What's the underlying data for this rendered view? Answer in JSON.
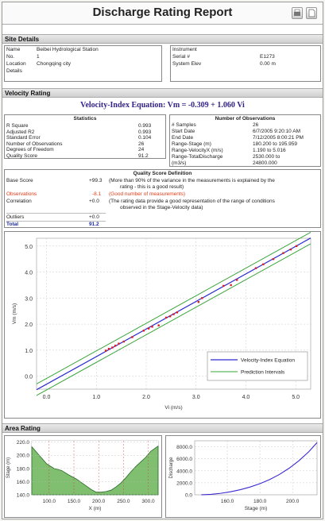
{
  "report": {
    "title": "Discharge Rating Report"
  },
  "site_details": {
    "heading": "Site Details",
    "name_label": "Name",
    "name_value": "Beibei Hydrological Station",
    "no_label": "No.",
    "no_value": "1",
    "location_label": "Location",
    "location_value": "Chongqing city",
    "details_label": "Details",
    "instrument_label": "Instrument",
    "serial_label": "Serial #",
    "serial_value": "E1273",
    "elev_label": "System Elev",
    "elev_value": "0.00 m"
  },
  "velocity_rating": {
    "heading": "Velocity Rating",
    "equation": "Velocity-Index Equation: Vm = -0.309 + 1.060 Vi",
    "statistics": {
      "title": "Statistics",
      "rows": [
        {
          "label": "R Square",
          "value": "0.993"
        },
        {
          "label": "Adjusted R2",
          "value": "0.993"
        },
        {
          "label": "Standard Error",
          "value": "0.104"
        },
        {
          "label": "Number of Observations",
          "value": "26"
        },
        {
          "label": "Degrees of Freedom",
          "value": "24"
        },
        {
          "label": "Quality Score",
          "value": "91.2"
        }
      ]
    },
    "observations": {
      "title": "Number of Observations",
      "rows": [
        {
          "label": "# Samples",
          "value": "26"
        },
        {
          "label": "Start Date",
          "value": "6/7/2005 9:20:10 AM"
        },
        {
          "label": "End Date",
          "value": "7/12/2005 8:00:21 PM"
        },
        {
          "label": "Range-Stage (m)",
          "value": "180.200 to 195.959"
        },
        {
          "label": "Range-VelocityX (m/s)",
          "value": "1.190 to 5.016"
        },
        {
          "label": "Range-TotalDischarge",
          "value": "2530.000 to"
        },
        {
          "label": "(m3/s)",
          "value": "24800.000"
        }
      ]
    },
    "quality": {
      "title": "Quality Score Definition",
      "base_label": "Base Score",
      "base_value": "+99.3",
      "base_desc_1": "(More than 90% of the variance in the measurements is explained by the",
      "base_desc_2": "rating - this is a good result)",
      "obs_label": "Observations",
      "obs_value": "-8.1",
      "obs_desc": "(Good number of measurements)",
      "corr_label": "Correlation",
      "corr_value": "+0.0",
      "corr_desc_1": "(The rating data provide a good representation of the range of conditions",
      "corr_desc_2": "observed in the Stage-Velocity data)",
      "outliers_label": "Outliers",
      "outliers_value": "+0.0",
      "total_label": "Total",
      "total_value": "91.2"
    }
  },
  "area_rating": {
    "heading": "Area Rating"
  },
  "colors": {
    "fit_line": "#2b2bd0",
    "interval_line": "#3aa53a",
    "points": "#e02020",
    "area_fill": "#7fbf6f",
    "discharge_curve": "#3a2ad0"
  },
  "chart_data": [
    {
      "type": "scatter",
      "title": "",
      "xlabel": "Vi (m/s)",
      "ylabel": "Vm (m/s)",
      "xlim": [
        -0.2,
        5.3
      ],
      "ylim": [
        -0.5,
        5.3
      ],
      "x_ticks": [
        "0.0",
        "1.0",
        "2.0",
        "3.0",
        "4.0",
        "5.0"
      ],
      "y_ticks": [
        "0.0",
        "1.0",
        "2.0",
        "3.0",
        "4.0",
        "5.0"
      ],
      "grid": true,
      "legend_position": "bottom-right",
      "series": [
        {
          "name": "Velocity-Index Equation",
          "kind": "line",
          "intercept": -0.309,
          "slope": 1.06
        },
        {
          "name": "Prediction Intervals",
          "kind": "line",
          "offset": 0.22
        },
        {
          "kind": "points",
          "x": [
            1.19,
            1.25,
            1.32,
            1.38,
            1.45,
            1.55,
            1.72,
            1.95,
            2.05,
            2.12,
            2.25,
            2.4,
            2.48,
            2.55,
            2.62,
            3.05,
            3.12,
            3.55,
            3.7,
            3.82,
            4.2,
            4.35,
            4.55,
            4.75,
            4.9,
            5.016
          ],
          "y": [
            0.98,
            1.05,
            1.1,
            1.17,
            1.25,
            1.33,
            1.5,
            1.75,
            1.83,
            1.9,
            1.95,
            2.25,
            2.3,
            2.38,
            2.45,
            2.85,
            3.0,
            3.47,
            3.5,
            3.7,
            4.15,
            4.3,
            4.5,
            4.73,
            4.87,
            5.0
          ]
        }
      ]
    },
    {
      "type": "area",
      "title": "",
      "xlabel": "X (m)",
      "ylabel": "Stage (m)",
      "xlim": [
        65,
        320
      ],
      "ylim": [
        140,
        222
      ],
      "x_ticks": [
        "100.0",
        "150.0",
        "200.0",
        "250.0",
        "300.0"
      ],
      "y_ticks": [
        "140.0",
        "160.0",
        "180.0",
        "200.0",
        "220.0"
      ],
      "grid": true,
      "x": [
        65,
        80,
        95,
        110,
        125,
        140,
        155,
        170,
        185,
        195,
        205,
        215,
        225,
        235,
        245,
        255,
        265,
        275,
        285,
        295,
        305,
        320
      ],
      "y": [
        213,
        200,
        187,
        180,
        177,
        170,
        164,
        156,
        148,
        144,
        144,
        145,
        147,
        152,
        158,
        166,
        175,
        183,
        190,
        197,
        206,
        214
      ]
    },
    {
      "type": "line",
      "title": "",
      "xlabel": "Stage (m)",
      "ylabel": "Discharge",
      "xlim": [
        140,
        215
      ],
      "ylim": [
        0,
        9000
      ],
      "x_ticks": [
        "160.0",
        "180.0",
        "200.0"
      ],
      "y_ticks": [
        "0.0",
        "2000.0",
        "4000.0",
        "6000.0",
        "8000.0"
      ],
      "grid": true,
      "x": [
        144,
        150,
        156,
        162,
        168,
        174,
        180,
        186,
        192,
        198,
        204,
        210,
        215
      ],
      "y": [
        0,
        80,
        250,
        500,
        850,
        1300,
        1850,
        2550,
        3400,
        4450,
        5700,
        7200,
        8700
      ]
    }
  ]
}
